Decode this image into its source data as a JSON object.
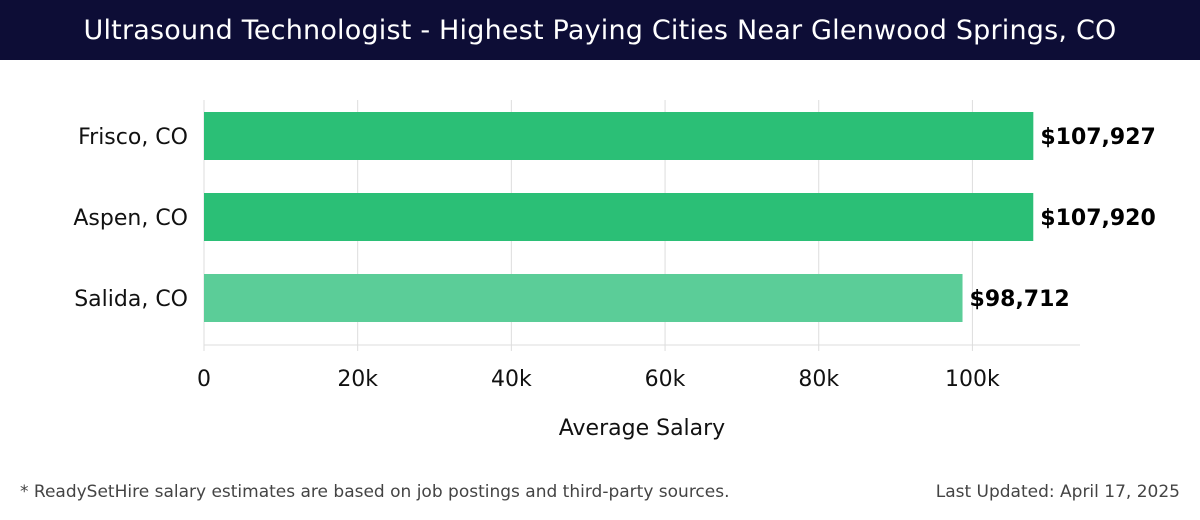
{
  "header": {
    "title": "Ultrasound Technologist - Highest Paying Cities Near Glenwood Springs, CO"
  },
  "chart_data": {
    "type": "bar",
    "orientation": "horizontal",
    "title": "Ultrasound Technologist - Highest Paying Cities Near Glenwood Springs, CO",
    "categories": [
      "Frisco, CO",
      "Aspen, CO",
      "Salida, CO"
    ],
    "values": [
      107927,
      107920,
      98712
    ],
    "value_labels": [
      "$107,927",
      "$107,920",
      "$98,712"
    ],
    "xlabel": "Average Salary",
    "ylabel": "",
    "xlim": [
      0,
      114000
    ],
    "xticks": [
      0,
      20000,
      40000,
      60000,
      80000,
      100000
    ],
    "xtick_labels": [
      "0",
      "20k",
      "40k",
      "60k",
      "80k",
      "100k"
    ],
    "grid": true,
    "colors": {
      "primary": "#2bbf76",
      "faded": "#5bcd98",
      "grid": "#dddddd",
      "text": "#111111"
    },
    "bar_colors": [
      "primary",
      "primary",
      "faded"
    ]
  },
  "footer": {
    "note": "* ReadySetHire salary estimates are based on job postings and third-party sources.",
    "updated": "Last Updated: April 17, 2025"
  }
}
